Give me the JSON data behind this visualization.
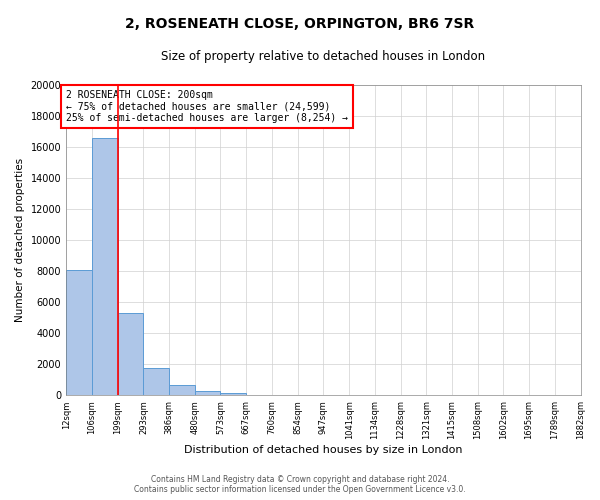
{
  "title": "2, ROSENEATH CLOSE, ORPINGTON, BR6 7SR",
  "subtitle": "Size of property relative to detached houses in London",
  "xlabel": "Distribution of detached houses by size in London",
  "ylabel": "Number of detached properties",
  "bin_labels": [
    "12sqm",
    "106sqm",
    "199sqm",
    "293sqm",
    "386sqm",
    "480sqm",
    "573sqm",
    "667sqm",
    "760sqm",
    "854sqm",
    "947sqm",
    "1041sqm",
    "1134sqm",
    "1228sqm",
    "1321sqm",
    "1415sqm",
    "1508sqm",
    "1602sqm",
    "1695sqm",
    "1789sqm",
    "1882sqm"
  ],
  "bin_edges": [
    12,
    106,
    199,
    293,
    386,
    480,
    573,
    667,
    760,
    854,
    947,
    1041,
    1134,
    1228,
    1321,
    1415,
    1508,
    1602,
    1695,
    1789,
    1882
  ],
  "bar_heights": [
    8100,
    16600,
    5300,
    1800,
    700,
    300,
    150,
    0,
    0,
    0,
    0,
    0,
    0,
    0,
    0,
    0,
    0,
    0,
    0,
    0
  ],
  "bar_color": "#aec6e8",
  "bar_edge_color": "#5b9bd5",
  "property_line_x": 199,
  "property_line_color": "red",
  "ylim": [
    0,
    20000
  ],
  "yticks": [
    0,
    2000,
    4000,
    6000,
    8000,
    10000,
    12000,
    14000,
    16000,
    18000,
    20000
  ],
  "annotation_text": "2 ROSENEATH CLOSE: 200sqm\n← 75% of detached houses are smaller (24,599)\n25% of semi-detached houses are larger (8,254) →",
  "annotation_box_color": "white",
  "annotation_box_edge": "red",
  "footer_line1": "Contains HM Land Registry data © Crown copyright and database right 2024.",
  "footer_line2": "Contains public sector information licensed under the Open Government Licence v3.0.",
  "bg_color": "white",
  "grid_color": "#d0d0d0"
}
